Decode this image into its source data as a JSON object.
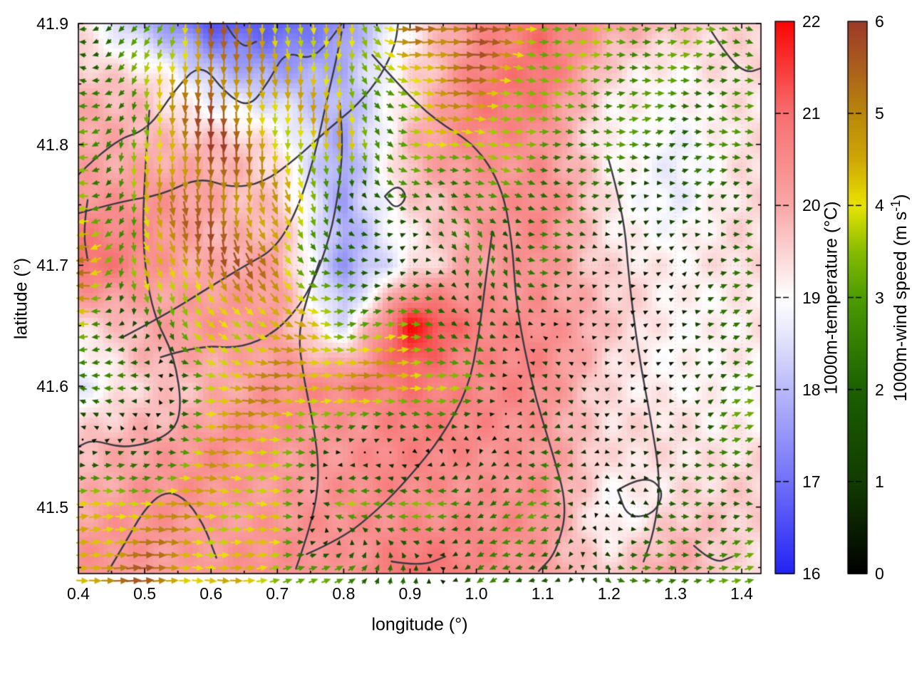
{
  "chart_data": {
    "type": "heatmap",
    "subtype": "temperature field with wind vector overlay and contours",
    "title": "",
    "xlabel": "longitude (°)",
    "ylabel": "latitude (°)",
    "xlim": [
      0.4,
      1.429
    ],
    "ylim": [
      41.445,
      41.9
    ],
    "x_ticks": [
      "0.4",
      "0.5",
      "0.6",
      "0.7",
      "0.8",
      "0.9",
      "1.0",
      "1.1",
      "1.2",
      "1.3",
      "1.4"
    ],
    "y_ticks": [
      "41.5",
      "41.6",
      "41.7",
      "41.8",
      "41.9"
    ],
    "grid": "dotted",
    "grid_color": "#9a9a9a",
    "contour_color": "#3a3a42",
    "temperature": {
      "label": "1000m-temperature (°C)",
      "range": [
        16,
        22
      ],
      "ticks": [
        "16",
        "17",
        "18",
        "19",
        "20",
        "21",
        "22"
      ],
      "colormap": [
        [
          16,
          "#2222f5"
        ],
        [
          17,
          "#7070f8"
        ],
        [
          18,
          "#b9b9fa"
        ],
        [
          18.6,
          "#e6e6fc"
        ],
        [
          19,
          "#ffffff"
        ],
        [
          19.4,
          "#fcdcdc"
        ],
        [
          20,
          "#f9a7a7"
        ],
        [
          21,
          "#f76f6f"
        ],
        [
          22,
          "#fa0505"
        ]
      ],
      "lats": [
        41.9,
        41.85,
        41.8,
        41.75,
        41.7,
        41.65,
        41.6,
        41.55,
        41.5,
        41.45
      ],
      "lons": [
        0.4,
        0.5,
        0.6,
        0.7,
        0.8,
        0.9,
        1.0,
        1.1,
        1.2,
        1.3,
        1.4
      ],
      "values": [
        [
          19.5,
          18.0,
          16.5,
          16.8,
          17.5,
          19.0,
          20.5,
          21.0,
          20.0,
          19.8,
          19.5
        ],
        [
          19.8,
          19.5,
          18.5,
          18.0,
          17.8,
          19.5,
          20.8,
          20.8,
          19.5,
          19.0,
          19.3
        ],
        [
          20.0,
          20.0,
          19.8,
          19.2,
          17.8,
          19.8,
          20.5,
          20.5,
          19.0,
          18.7,
          19.5
        ],
        [
          20.5,
          20.3,
          20.0,
          19.8,
          17.6,
          19.5,
          20.3,
          20.5,
          19.3,
          18.8,
          19.3
        ],
        [
          21.0,
          20.5,
          20.0,
          20.0,
          17.6,
          19.2,
          20.0,
          20.5,
          19.5,
          19.0,
          19.5
        ],
        [
          19.5,
          20.0,
          20.2,
          20.3,
          18.5,
          21.8,
          20.8,
          20.5,
          19.6,
          19.2,
          19.2
        ],
        [
          18.5,
          19.5,
          20.0,
          20.3,
          20.5,
          21.0,
          20.5,
          20.5,
          19.5,
          19.0,
          19.0
        ],
        [
          19.8,
          20.2,
          20.3,
          20.3,
          20.4,
          20.6,
          20.5,
          20.4,
          19.3,
          19.4,
          19.4
        ],
        [
          20.0,
          20.3,
          20.3,
          20.3,
          20.3,
          20.5,
          20.5,
          20.3,
          19.0,
          19.5,
          19.5
        ],
        [
          20.3,
          20.3,
          20.3,
          20.3,
          20.4,
          21.0,
          20.5,
          20.3,
          19.5,
          20.0,
          19.5
        ]
      ]
    },
    "wind": {
      "label": "1000m-wind speed (m s⁻¹)",
      "label_prefix": "1000m-wind speed (m s",
      "label_sup": "-1",
      "label_suffix": ")",
      "range": [
        0,
        6
      ],
      "ticks": [
        "0",
        "1",
        "2",
        "3",
        "4",
        "5",
        "6"
      ],
      "colormap": [
        [
          0,
          "#000000"
        ],
        [
          1,
          "#113c00"
        ],
        [
          2,
          "#1b6000"
        ],
        [
          3,
          "#4c9c00"
        ],
        [
          3.5,
          "#86bb00"
        ],
        [
          4,
          "#e8e400"
        ],
        [
          4.5,
          "#cfa705"
        ],
        [
          5,
          "#b8860b"
        ],
        [
          5.5,
          "#ab5f1c"
        ],
        [
          6,
          "#9c3a28"
        ]
      ],
      "lats": [
        41.9,
        41.8,
        41.7,
        41.6,
        41.5,
        41.45
      ],
      "lons": [
        0.4,
        0.5,
        0.6,
        0.7,
        0.8,
        0.9,
        1.0,
        1.1,
        1.2,
        1.3,
        1.4
      ],
      "u": [
        [
          -2.5,
          -2.0,
          0.0,
          0.0,
          -0.5,
          5.0,
          5.5,
          3.5,
          3.0,
          2.8,
          2.5
        ],
        [
          -2.8,
          0.5,
          0.0,
          0.5,
          0.0,
          3.5,
          4.5,
          3.0,
          3.0,
          2.5,
          2.8
        ],
        [
          -5.5,
          2.0,
          1.0,
          3.0,
          2.0,
          1.2,
          0.0,
          2.5,
          0.3,
          0.3,
          2.0
        ],
        [
          -3.0,
          -2.5,
          4.0,
          4.5,
          4.5,
          4.5,
          2.5,
          -2.0,
          0.2,
          0.2,
          2.5
        ],
        [
          4.0,
          4.8,
          4.5,
          4.0,
          -3.5,
          -3.5,
          -2.0,
          -2.5,
          0.3,
          2.0,
          2.5
        ],
        [
          5.0,
          5.5,
          4.5,
          4.0,
          2.5,
          0.5,
          -1.5,
          -2.0,
          2.0,
          3.0,
          3.0
        ]
      ],
      "v": [
        [
          0.0,
          -2.5,
          -5.0,
          -4.0,
          -4.5,
          0.0,
          0.0,
          0.0,
          0.0,
          0.0,
          -0.5
        ],
        [
          0.0,
          -4.0,
          -5.5,
          -4.0,
          -4.5,
          -1.0,
          0.0,
          0.0,
          0.0,
          0.0,
          0.0
        ],
        [
          -0.5,
          -4.0,
          -5.0,
          -4.0,
          0.0,
          0.3,
          -2.5,
          0.0,
          0.0,
          0.2,
          0.3
        ],
        [
          0.0,
          0.5,
          0.0,
          0.0,
          0.0,
          -0.3,
          0.3,
          0.3,
          0.1,
          0.0,
          1.0
        ],
        [
          0.0,
          0.0,
          0.0,
          0.0,
          0.0,
          0.0,
          -1.0,
          0.0,
          -0.2,
          -0.5,
          0.0
        ],
        [
          0.0,
          0.0,
          0.3,
          0.5,
          1.5,
          1.5,
          -1.0,
          -0.5,
          -1.0,
          0.0,
          1.0
        ]
      ]
    },
    "contours": [
      [
        [
          0.4,
          41.775
        ],
        [
          0.452,
          41.803
        ],
        [
          0.505,
          41.812
        ],
        [
          0.545,
          41.845
        ],
        [
          0.585,
          41.868
        ],
        [
          0.622,
          41.842
        ],
        [
          0.658,
          41.83
        ],
        [
          0.688,
          41.853
        ],
        [
          0.712,
          41.877
        ],
        [
          0.748,
          41.87
        ],
        [
          0.775,
          41.883
        ],
        [
          0.797,
          41.9
        ]
      ],
      [
        [
          0.4,
          41.743
        ],
        [
          0.465,
          41.753
        ],
        [
          0.525,
          41.758
        ],
        [
          0.582,
          41.773
        ],
        [
          0.63,
          41.764
        ],
        [
          0.678,
          41.768
        ],
        [
          0.728,
          41.788
        ],
        [
          0.775,
          41.812
        ],
        [
          0.822,
          41.833
        ],
        [
          0.858,
          41.858
        ],
        [
          0.878,
          41.883
        ],
        [
          0.882,
          41.9
        ]
      ],
      [
        [
          0.507,
          41.828
        ],
        [
          0.499,
          41.77
        ],
        [
          0.497,
          41.712
        ],
        [
          0.512,
          41.66
        ],
        [
          0.545,
          41.625
        ],
        [
          0.557,
          41.578
        ],
        [
          0.535,
          41.558
        ],
        [
          0.47,
          41.548
        ],
        [
          0.422,
          41.556
        ],
        [
          0.4,
          41.55
        ]
      ],
      [
        [
          0.465,
          41.64
        ],
        [
          0.528,
          41.658
        ],
        [
          0.598,
          41.682
        ],
        [
          0.652,
          41.7
        ],
        [
          0.698,
          41.714
        ],
        [
          0.732,
          41.748
        ],
        [
          0.757,
          41.792
        ],
        [
          0.773,
          41.833
        ],
        [
          0.788,
          41.868
        ],
        [
          0.797,
          41.893
        ]
      ],
      [
        [
          0.843,
          41.874
        ],
        [
          0.888,
          41.846
        ],
        [
          0.938,
          41.82
        ],
        [
          0.998,
          41.8
        ],
        [
          1.038,
          41.766
        ],
        [
          1.054,
          41.72
        ],
        [
          1.06,
          41.666
        ],
        [
          1.084,
          41.6
        ],
        [
          1.113,
          41.548
        ],
        [
          1.138,
          41.5
        ],
        [
          1.12,
          41.462
        ],
        [
          1.094,
          41.447
        ]
      ],
      [
        [
          0.524,
          41.624
        ],
        [
          0.583,
          41.634
        ],
        [
          0.643,
          41.631
        ],
        [
          0.7,
          41.645
        ],
        [
          0.744,
          41.674
        ],
        [
          0.774,
          41.713
        ],
        [
          0.791,
          41.754
        ],
        [
          0.799,
          41.798
        ],
        [
          0.794,
          41.834
        ]
      ],
      [
        [
          0.728,
          41.449
        ],
        [
          0.753,
          41.488
        ],
        [
          0.764,
          41.528
        ],
        [
          0.754,
          41.57
        ],
        [
          0.739,
          41.608
        ],
        [
          0.731,
          41.645
        ],
        [
          0.748,
          41.679
        ],
        [
          0.764,
          41.704
        ]
      ],
      [
        [
          0.744,
          41.461
        ],
        [
          0.798,
          41.474
        ],
        [
          0.852,
          41.498
        ],
        [
          0.898,
          41.524
        ],
        [
          0.948,
          41.558
        ],
        [
          0.988,
          41.598
        ],
        [
          1.004,
          41.643
        ],
        [
          1.014,
          41.688
        ],
        [
          1.024,
          41.728
        ]
      ],
      [
        [
          1.198,
          41.79
        ],
        [
          1.222,
          41.744
        ],
        [
          1.23,
          41.688
        ],
        [
          1.244,
          41.628
        ],
        [
          1.263,
          41.573
        ],
        [
          1.278,
          41.52
        ],
        [
          1.268,
          41.48
        ],
        [
          1.252,
          41.455
        ]
      ],
      [
        [
          0.862,
          41.757
        ],
        [
          0.879,
          41.768
        ],
        [
          0.897,
          41.757
        ],
        [
          0.879,
          41.746
        ],
        [
          0.862,
          41.757
        ]
      ],
      [
        [
          1.213,
          41.514
        ],
        [
          1.252,
          41.527
        ],
        [
          1.284,
          41.514
        ],
        [
          1.268,
          41.494
        ],
        [
          1.228,
          41.491
        ],
        [
          1.213,
          41.514
        ]
      ],
      [
        [
          1.355,
          41.893
        ],
        [
          1.382,
          41.87
        ],
        [
          1.408,
          41.859
        ],
        [
          1.429,
          41.863
        ]
      ],
      [
        [
          0.414,
          41.754
        ],
        [
          0.407,
          41.729
        ],
        [
          0.414,
          41.704
        ]
      ],
      [
        [
          0.445,
          41.447
        ],
        [
          0.468,
          41.468
        ],
        [
          0.498,
          41.497
        ],
        [
          0.528,
          41.513
        ],
        [
          0.558,
          41.509
        ],
        [
          0.588,
          41.487
        ],
        [
          0.608,
          41.458
        ]
      ],
      [
        [
          0.624,
          41.898
        ],
        [
          0.645,
          41.879
        ],
        [
          0.668,
          41.885
        ]
      ],
      [
        [
          0.872,
          41.455
        ],
        [
          0.916,
          41.451
        ],
        [
          0.953,
          41.459
        ]
      ],
      [
        [
          1.328,
          41.468
        ],
        [
          1.358,
          41.453
        ],
        [
          1.386,
          41.459
        ]
      ]
    ]
  }
}
